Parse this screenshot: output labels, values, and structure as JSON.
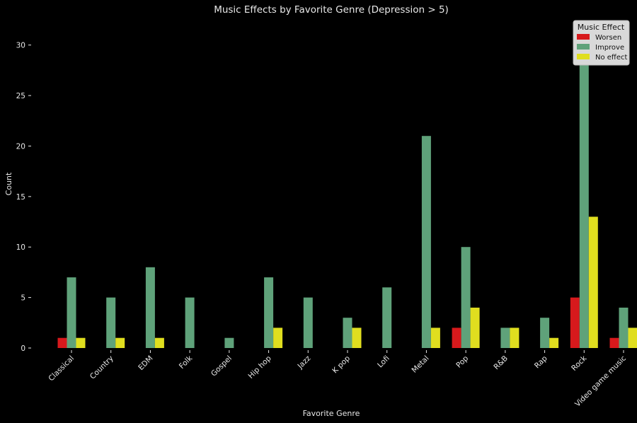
{
  "chart_data": {
    "type": "bar",
    "title": "Music Effects by Favorite Genre (Depression > 5)",
    "xlabel": "Favorite Genre",
    "ylabel": "Count",
    "ylim": [
      0,
      32.5
    ],
    "yticks": [
      0,
      5,
      10,
      15,
      20,
      25,
      30
    ],
    "grid": false,
    "categories": [
      "Classical",
      "Country",
      "EDM",
      "Folk",
      "Gospel",
      "Hip hop",
      "Jazz",
      "K pop",
      "Lofi",
      "Metal",
      "Pop",
      "R&B",
      "Rap",
      "Rock",
      "Video game music"
    ],
    "series": [
      {
        "name": "Worsen",
        "color": "#d7191c",
        "values": [
          1,
          0,
          0,
          0,
          0,
          0,
          0,
          0,
          0,
          0,
          2,
          0,
          0,
          5,
          1
        ]
      },
      {
        "name": "Improve",
        "color": "#5fa27a",
        "values": [
          7,
          5,
          8,
          5,
          1,
          7,
          5,
          3,
          6,
          21,
          10,
          2,
          3,
          31,
          4
        ]
      },
      {
        "name": "No effect",
        "color": "#e0de1f",
        "values": [
          1,
          1,
          1,
          0,
          0,
          2,
          0,
          2,
          0,
          2,
          4,
          2,
          1,
          13,
          2
        ]
      }
    ],
    "legend": {
      "title": "Music Effect",
      "placement": "top-right"
    }
  }
}
